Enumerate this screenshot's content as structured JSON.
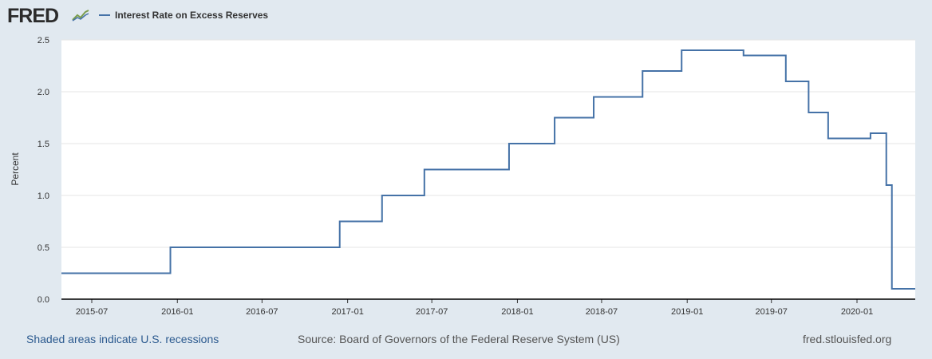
{
  "header": {
    "logo_text": "FRED",
    "logo_icon": "line-chart-icon",
    "legend_label": "Interest Rate on Excess Reserves",
    "legend_color": "#4572a7"
  },
  "footer": {
    "recessions_link": "Shaded areas indicate U.S. recessions",
    "source": "Source: Board of Governors of the Federal Reserve System (US)",
    "site": "fred.stlouisfed.org"
  },
  "chart_data": {
    "type": "line",
    "title": "",
    "xlabel": "",
    "ylabel": "Percent",
    "ylim": [
      0,
      2.5
    ],
    "yticks": [
      "0.0",
      "0.5",
      "1.0",
      "1.5",
      "2.0",
      "2.5"
    ],
    "xticks": [
      "2015-07",
      "2016-01",
      "2016-07",
      "2017-01",
      "2017-07",
      "2018-01",
      "2018-07",
      "2019-01",
      "2019-07",
      "2020-01"
    ],
    "grid": true,
    "series": [
      {
        "name": "Interest Rate on Excess Reserves",
        "color": "#4572a7",
        "step": true,
        "x": [
          "2015-04",
          "2015-12-17",
          "2016-12-15",
          "2017-03-16",
          "2017-06-15",
          "2017-12-14",
          "2018-03-22",
          "2018-06-14",
          "2018-09-27",
          "2018-12-20",
          "2019-05-02",
          "2019-08-01",
          "2019-09-19",
          "2019-10-31",
          "2020-01-30",
          "2020-03-04",
          "2020-03-16",
          "2020-05"
        ],
        "values": [
          0.25,
          0.5,
          0.75,
          1.0,
          1.25,
          1.5,
          1.75,
          1.95,
          2.2,
          2.4,
          2.35,
          2.1,
          1.8,
          1.55,
          1.6,
          1.1,
          0.1,
          0.1
        ]
      }
    ]
  }
}
